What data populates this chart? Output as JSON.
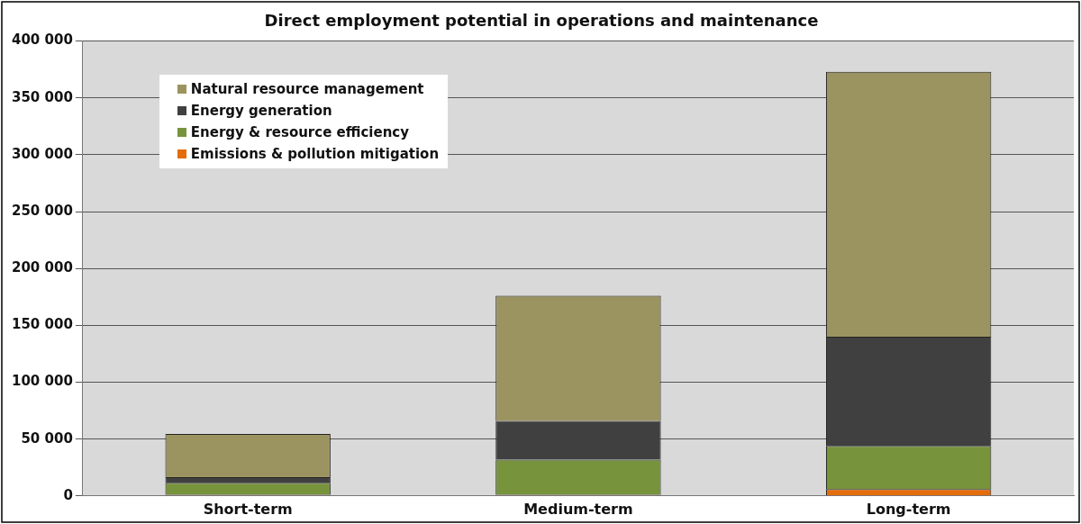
{
  "chart_data": {
    "type": "bar",
    "title": "Direct employment potential in operations and maintenance",
    "categories": [
      "Short-term",
      "Medium-term",
      "Long-term"
    ],
    "stacked": true,
    "series": [
      {
        "name": "Emissions & pollution mitigation",
        "color": "#e46c0a",
        "values": [
          1000,
          1000,
          6000
        ]
      },
      {
        "name": "Energy & resource efficiency",
        "color": "#77933c",
        "values": [
          10500,
          31000,
          38000
        ]
      },
      {
        "name": "Energy generation",
        "color": "#404040",
        "values": [
          5000,
          34000,
          96000
        ]
      },
      {
        "name": "Natural resource management",
        "color": "#9c9460",
        "values": [
          38000,
          110000,
          233000
        ]
      }
    ],
    "ylim": [
      0,
      400000
    ],
    "yticks": [
      {
        "value": 0,
        "label": "0"
      },
      {
        "value": 50000,
        "label": "50 000"
      },
      {
        "value": 100000,
        "label": "100 000"
      },
      {
        "value": 150000,
        "label": "150 000"
      },
      {
        "value": 200000,
        "label": "200 000"
      },
      {
        "value": 250000,
        "label": "250 000"
      },
      {
        "value": 300000,
        "label": "300 000"
      },
      {
        "value": 350000,
        "label": "350 000"
      },
      {
        "value": 400000,
        "label": "400 000"
      }
    ],
    "grid": "y",
    "legend": "top left"
  }
}
